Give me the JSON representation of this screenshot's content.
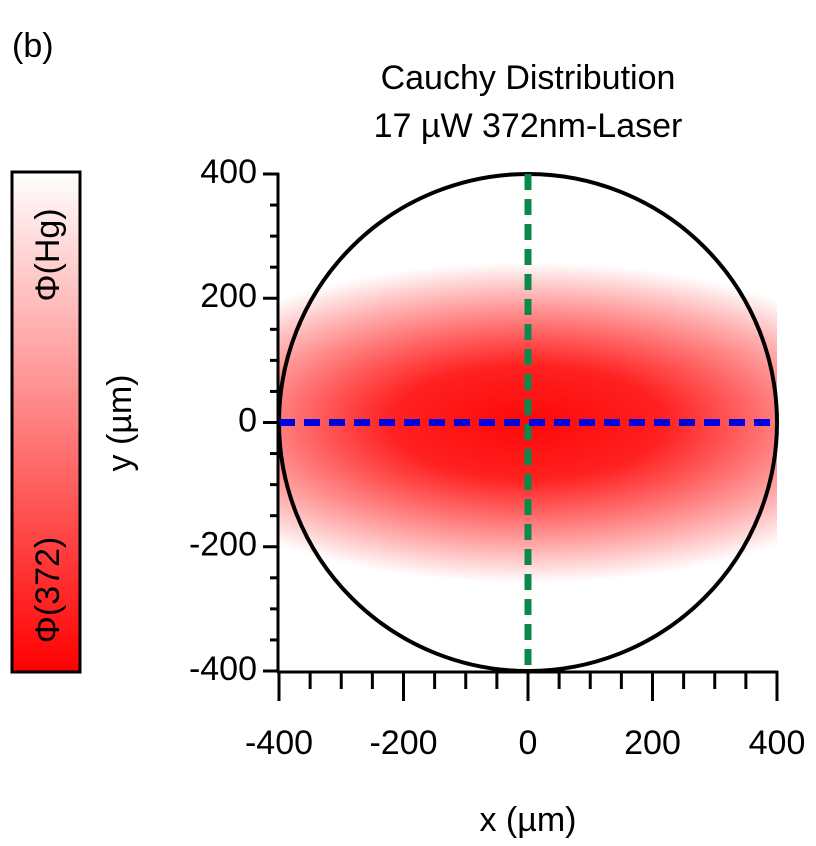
{
  "panel_label": "(b)",
  "chart_data": {
    "type": "heatmap",
    "title": [
      "Cauchy Distribution",
      "17 µW 372nm-Laser"
    ],
    "xlabel": "x (µm)",
    "ylabel": "y (µm)",
    "xlim": [
      -400,
      400
    ],
    "ylim": [
      -400,
      400
    ],
    "xticks": [
      -400,
      -200,
      0,
      200,
      400
    ],
    "yticks": [
      -400,
      -200,
      0,
      200,
      400
    ],
    "xminor_ticks": [
      -350,
      -300,
      -250,
      -150,
      -100,
      -50,
      50,
      100,
      150,
      250,
      300,
      350
    ],
    "yminor_ticks": [
      -350,
      -300,
      -250,
      -150,
      -100,
      -50,
      50,
      100,
      150,
      250,
      300,
      350
    ],
    "colorscale": [
      "#ff0000",
      "#ffffff"
    ],
    "colorbar": {
      "top_label": "Φ(Hg)",
      "bottom_label": "Φ(372)"
    },
    "circle": {
      "r": 400,
      "color": "#000000"
    },
    "vlines": [
      {
        "x": 0,
        "color": "#0a8a4a"
      }
    ],
    "hlines": [
      {
        "y": 0,
        "color": "#0000e0"
      }
    ]
  }
}
